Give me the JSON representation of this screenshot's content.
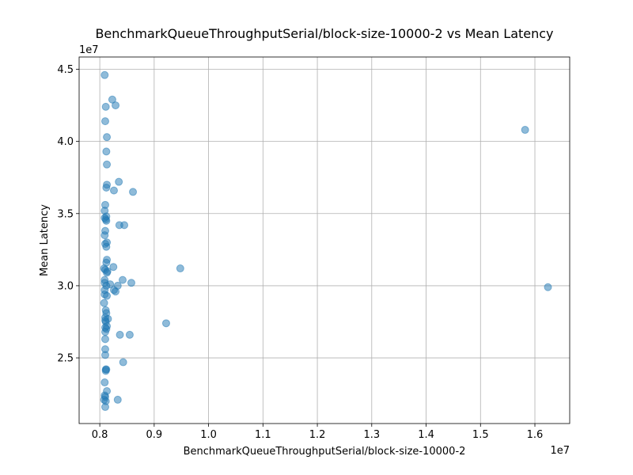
{
  "chart_data": {
    "type": "scatter",
    "title": "BenchmarkQueueThroughputSerial/block-size-10000-2 vs Mean Latency",
    "xlabel": "BenchmarkQueueThroughputSerial/block-size-10000-2",
    "ylabel": "Mean Latency",
    "x_offset_label": "1e7",
    "y_offset_label": "1e7",
    "xlim": [
      7620000,
      16640000
    ],
    "ylim": [
      20450000,
      45850000
    ],
    "x_ticks": [
      8000000,
      9000000,
      10000000,
      11000000,
      12000000,
      13000000,
      14000000,
      15000000,
      16000000
    ],
    "x_tick_labels": [
      "0.8",
      "0.9",
      "1.0",
      "1.1",
      "1.2",
      "1.3",
      "1.4",
      "1.5",
      "1.6"
    ],
    "y_ticks": [
      25000000,
      30000000,
      35000000,
      40000000,
      45000000
    ],
    "y_tick_labels": [
      "2.5",
      "3.0",
      "3.5",
      "4.0",
      "4.5"
    ],
    "grid": true,
    "color": "#1f77b4",
    "alpha": 0.5,
    "series": [
      {
        "x": [
          8090000,
          8230000,
          8110000,
          8290000,
          8100000,
          8130000,
          15820000,
          8120000,
          8130000,
          8350000,
          8130000,
          8120000,
          8260000,
          8610000,
          8100000,
          8090000,
          8120000,
          8090000,
          8110000,
          8120000,
          8360000,
          8450000,
          8100000,
          8090000,
          8130000,
          8100000,
          8120000,
          8130000,
          8120000,
          8250000,
          8080000,
          9480000,
          8100000,
          8140000,
          8130000,
          8090000,
          8420000,
          8580000,
          8090000,
          8190000,
          8330000,
          8120000,
          8090000,
          8260000,
          8290000,
          16240000,
          8090000,
          8130000,
          8080000,
          8110000,
          8120000,
          8100000,
          8150000,
          8100000,
          8110000,
          9220000,
          8130000,
          8100000,
          8120000,
          8100000,
          8370000,
          8550000,
          8100000,
          8100000,
          8100000,
          8110000,
          8430000,
          8120000,
          8110000,
          8090000,
          8130000,
          8090000,
          8100000,
          8330000,
          8080000,
          8110000,
          8100000
        ],
        "y": [
          44600000,
          42900000,
          42400000,
          42500000,
          41400000,
          40300000,
          40800000,
          39300000,
          38400000,
          37200000,
          37000000,
          36800000,
          36600000,
          36500000,
          35600000,
          35200000,
          34800000,
          34700000,
          34600000,
          34500000,
          34200000,
          34200000,
          33800000,
          33500000,
          33000000,
          32900000,
          32700000,
          31800000,
          31600000,
          31300000,
          31200000,
          31200000,
          31100000,
          31000000,
          30900000,
          30400000,
          30400000,
          30200000,
          30200000,
          30100000,
          30000000,
          30000000,
          29700000,
          29700000,
          29600000,
          29900000,
          29400000,
          29300000,
          28800000,
          28300000,
          28100000,
          27800000,
          27700000,
          27600000,
          27500000,
          27400000,
          27200000,
          27100000,
          27000000,
          26800000,
          26600000,
          26600000,
          26300000,
          25600000,
          25200000,
          24200000,
          24700000,
          24200000,
          24100000,
          23300000,
          22700000,
          22400000,
          22300000,
          22100000,
          22100000,
          22000000,
          21600000
        ]
      }
    ]
  }
}
